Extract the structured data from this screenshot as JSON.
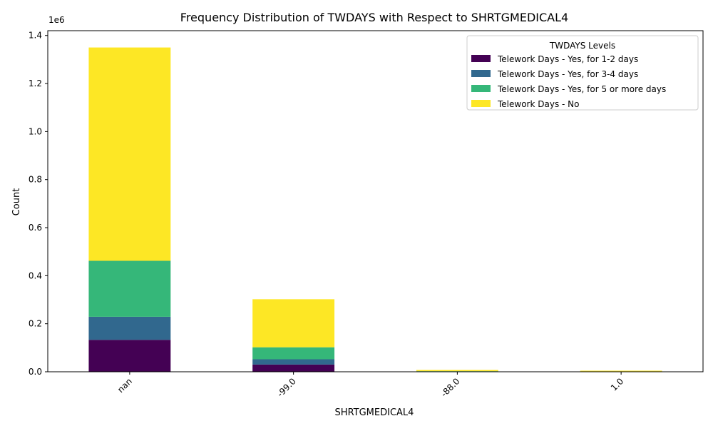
{
  "chart_data": {
    "type": "bar",
    "stacked": true,
    "title": "Frequency Distribution of TWDAYS with Respect to SHRTGMEDICAL4",
    "xlabel": "SHRTGMEDICAL4",
    "ylabel": "Count",
    "y_offset_label": "1e6",
    "categories": [
      "nan",
      "-99.0",
      "-88.0",
      "1.0"
    ],
    "ylim": [
      0,
      1420000
    ],
    "yticks": [
      0,
      200000,
      400000,
      600000,
      800000,
      1000000,
      1200000,
      1400000
    ],
    "ytick_labels": [
      "0.0",
      "0.2",
      "0.4",
      "0.6",
      "0.8",
      "1.0",
      "1.2",
      "1.4"
    ],
    "legend_title": "TWDAYS Levels",
    "legend_position": "top-right",
    "grid": false,
    "series": [
      {
        "name": "Telework Days - Yes, for 1-2 days",
        "color": "#440154",
        "values": [
          133000,
          30000,
          1000,
          700
        ]
      },
      {
        "name": "Telework Days - Yes, for 3-4 days",
        "color": "#31688e",
        "values": [
          96000,
          22000,
          500,
          300
        ]
      },
      {
        "name": "Telework Days - Yes, for 5 or more days",
        "color": "#35b779",
        "values": [
          233000,
          50000,
          1000,
          600
        ]
      },
      {
        "name": "Telework Days - No",
        "color": "#fde725",
        "values": [
          888000,
          200000,
          5000,
          3000
        ]
      }
    ]
  }
}
